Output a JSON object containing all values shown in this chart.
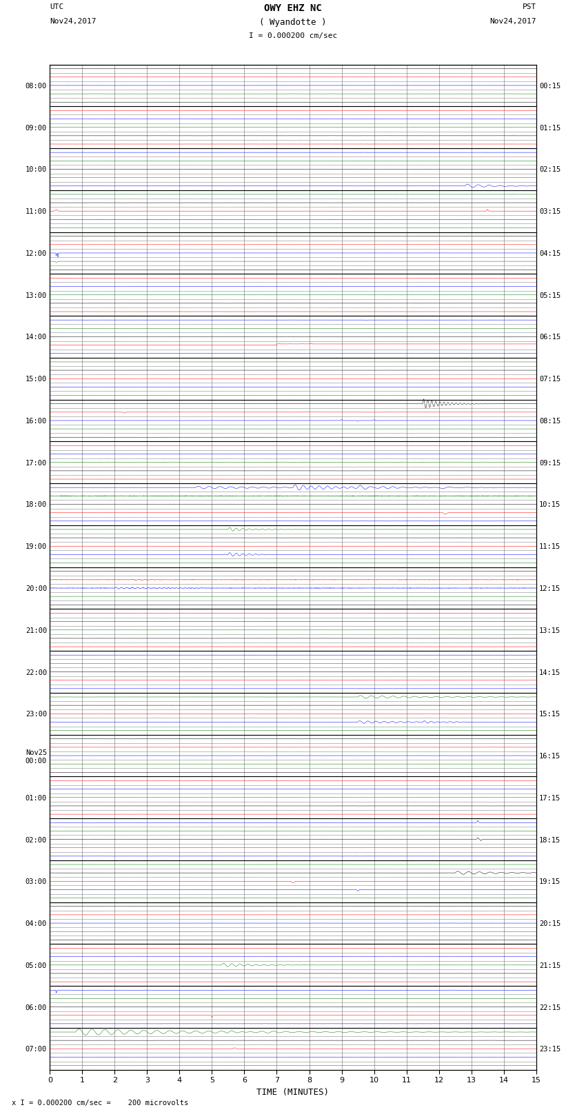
{
  "title_line1": "OWY EHZ NC",
  "title_line2": "( Wyandotte )",
  "scale_text": "I = 0.000200 cm/sec",
  "utc_label": "UTC",
  "utc_date": "Nov24,2017",
  "pst_label": "PST",
  "pst_date": "Nov24,2017",
  "xlabel": "TIME (MINUTES)",
  "footer": "x I = 0.000200 cm/sec =    200 microvolts",
  "xlim": [
    0,
    15
  ],
  "num_rows": 24,
  "lines_per_row": 5,
  "left_labels_utc": [
    "08:00",
    "09:00",
    "10:00",
    "11:00",
    "12:00",
    "13:00",
    "14:00",
    "15:00",
    "16:00",
    "17:00",
    "18:00",
    "19:00",
    "20:00",
    "21:00",
    "22:00",
    "23:00",
    "Nov25\n00:00",
    "01:00",
    "02:00",
    "03:00",
    "04:00",
    "05:00",
    "06:00",
    "07:00"
  ],
  "right_labels_pst": [
    "00:15",
    "01:15",
    "02:15",
    "03:15",
    "04:15",
    "05:15",
    "06:15",
    "07:15",
    "08:15",
    "09:15",
    "10:15",
    "11:15",
    "12:15",
    "13:15",
    "14:15",
    "15:15",
    "16:15",
    "17:15",
    "18:15",
    "19:15",
    "20:15",
    "21:15",
    "22:15",
    "23:15"
  ],
  "bg_color": "#ffffff",
  "grid_color": "#888888",
  "trace_noise": 0.008,
  "figsize": [
    8.5,
    16.13
  ],
  "dpi": 100
}
